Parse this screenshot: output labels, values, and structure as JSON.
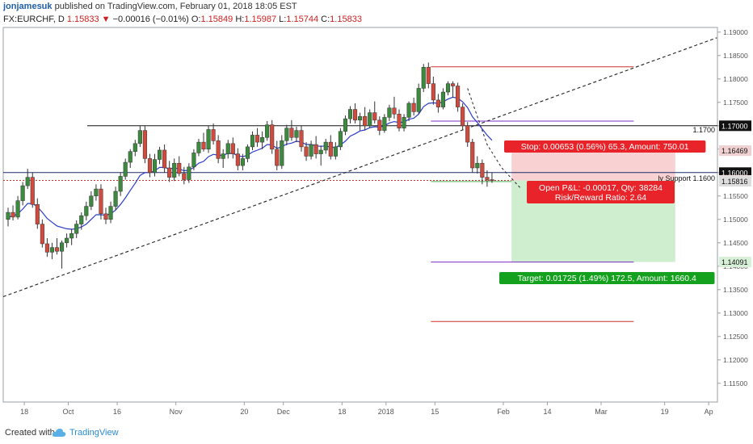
{
  "header": {
    "author": "jonjamesuk",
    "published": "published on TradingView.com, February 01, 2018 18:05 EST",
    "symbol_line_prefix": "FX:EURCHF, D",
    "last": "1.15833",
    "change": "−0.00016 (−0.01%)",
    "open": "1.15849",
    "high": "1.15987",
    "low": "1.15744",
    "close": "1.15833",
    "o_label": "O:",
    "h_label": "H:",
    "l_label": "L:",
    "c_label": "C:"
  },
  "footer": {
    "created_with": "Created with",
    "brand": "TradingView"
  },
  "chart_data": {
    "type": "candlestick",
    "symbol": "FX:EURCHF",
    "timeframe": "D",
    "ylim": [
      1.111,
      1.191
    ],
    "y_ticks": [
      "1.19000",
      "1.18500",
      "1.18000",
      "1.17500",
      "1.17000",
      "1.16500",
      "1.16000",
      "1.15500",
      "1.15000",
      "1.14500",
      "1.14000",
      "1.13500",
      "1.13000",
      "1.12500",
      "1.12000",
      "1.11500"
    ],
    "x_ticks": [
      {
        "label": "18",
        "i": 2
      },
      {
        "label": "Oct",
        "i": 11
      },
      {
        "label": "16",
        "i": 21
      },
      {
        "label": "Nov",
        "i": 33
      },
      {
        "label": "20",
        "i": 47
      },
      {
        "label": "Dec",
        "i": 55
      },
      {
        "label": "18",
        "i": 67
      },
      {
        "label": "2018",
        "i": 76
      },
      {
        "label": "15",
        "i": 86
      },
      {
        "label": "Feb",
        "i": 100
      },
      {
        "label": "14",
        "i": 109
      },
      {
        "label": "Mar",
        "i": 120
      },
      {
        "label": "19",
        "i": 133
      },
      {
        "label": "Ap",
        "i": 142
      }
    ],
    "candles": [
      [
        1.15,
        1.1525,
        1.1485,
        1.1515
      ],
      [
        1.1515,
        1.153,
        1.1498,
        1.1505
      ],
      [
        1.1505,
        1.155,
        1.15,
        1.154
      ],
      [
        1.154,
        1.158,
        1.153,
        1.1572
      ],
      [
        1.1572,
        1.1608,
        1.1565,
        1.159
      ],
      [
        1.159,
        1.16,
        1.1525,
        1.1532
      ],
      [
        1.1532,
        1.1545,
        1.148,
        1.149
      ],
      [
        1.149,
        1.15,
        1.144,
        1.1448
      ],
      [
        1.1448,
        1.146,
        1.142,
        1.143
      ],
      [
        1.143,
        1.145,
        1.1415,
        1.144
      ],
      [
        1.144,
        1.146,
        1.1425,
        1.1432
      ],
      [
        1.1432,
        1.1455,
        1.1395,
        1.145
      ],
      [
        1.145,
        1.147,
        1.144,
        1.146
      ],
      [
        1.146,
        1.148,
        1.1445,
        1.147
      ],
      [
        1.147,
        1.1498,
        1.146,
        1.149
      ],
      [
        1.149,
        1.1515,
        1.1478,
        1.1508
      ],
      [
        1.1508,
        1.1538,
        1.1498,
        1.1528
      ],
      [
        1.1528,
        1.156,
        1.152,
        1.155
      ],
      [
        1.155,
        1.1575,
        1.154,
        1.1565
      ],
      [
        1.1565,
        1.1575,
        1.15,
        1.1512
      ],
      [
        1.1512,
        1.1525,
        1.149,
        1.15
      ],
      [
        1.15,
        1.1538,
        1.1492,
        1.1528
      ],
      [
        1.1528,
        1.157,
        1.152,
        1.156
      ],
      [
        1.156,
        1.16,
        1.155,
        1.1592
      ],
      [
        1.1592,
        1.163,
        1.1585,
        1.1622
      ],
      [
        1.1622,
        1.165,
        1.161,
        1.1645
      ],
      [
        1.1645,
        1.167,
        1.1635,
        1.1662
      ],
      [
        1.1662,
        1.17,
        1.1655,
        1.169
      ],
      [
        1.169,
        1.17,
        1.162,
        1.163
      ],
      [
        1.163,
        1.164,
        1.159,
        1.16
      ],
      [
        1.16,
        1.164,
        1.1592,
        1.1628
      ],
      [
        1.1628,
        1.1655,
        1.1618,
        1.1648
      ],
      [
        1.1648,
        1.166,
        1.16,
        1.161
      ],
      [
        1.161,
        1.1625,
        1.158,
        1.159
      ],
      [
        1.159,
        1.163,
        1.1582,
        1.162
      ],
      [
        1.162,
        1.1635,
        1.1592,
        1.1598
      ],
      [
        1.1598,
        1.1612,
        1.1575,
        1.1585
      ],
      [
        1.1585,
        1.162,
        1.1578,
        1.1612
      ],
      [
        1.1612,
        1.165,
        1.1605,
        1.1642
      ],
      [
        1.1642,
        1.1672,
        1.1635,
        1.1665
      ],
      [
        1.1665,
        1.1685,
        1.1645,
        1.165
      ],
      [
        1.165,
        1.17,
        1.1642,
        1.1692
      ],
      [
        1.1692,
        1.1705,
        1.166,
        1.1668
      ],
      [
        1.1668,
        1.168,
        1.162,
        1.163
      ],
      [
        1.163,
        1.165,
        1.161,
        1.164
      ],
      [
        1.164,
        1.167,
        1.163,
        1.1662
      ],
      [
        1.1662,
        1.1675,
        1.163,
        1.164
      ],
      [
        1.164,
        1.1652,
        1.1605,
        1.1615
      ],
      [
        1.1615,
        1.164,
        1.1605,
        1.163
      ],
      [
        1.163,
        1.166,
        1.1622,
        1.1655
      ],
      [
        1.1655,
        1.1688,
        1.1648,
        1.168
      ],
      [
        1.168,
        1.1695,
        1.1655,
        1.1665
      ],
      [
        1.1665,
        1.1688,
        1.165,
        1.1675
      ],
      [
        1.1675,
        1.171,
        1.1668,
        1.1702
      ],
      [
        1.1702,
        1.1712,
        1.164,
        1.165
      ],
      [
        1.165,
        1.1668,
        1.1605,
        1.1615
      ],
      [
        1.1615,
        1.168,
        1.1608,
        1.1668
      ],
      [
        1.1668,
        1.1702,
        1.1658,
        1.1695
      ],
      [
        1.1695,
        1.1712,
        1.1668,
        1.1675
      ],
      [
        1.1675,
        1.1698,
        1.1665,
        1.169
      ],
      [
        1.169,
        1.17,
        1.1645,
        1.1655
      ],
      [
        1.1655,
        1.1665,
        1.1625,
        1.1635
      ],
      [
        1.1635,
        1.1668,
        1.1628,
        1.166
      ],
      [
        1.166,
        1.1678,
        1.163,
        1.164
      ],
      [
        1.164,
        1.1658,
        1.1615,
        1.1648
      ],
      [
        1.1648,
        1.1672,
        1.164,
        1.1665
      ],
      [
        1.1665,
        1.168,
        1.1628,
        1.1635
      ],
      [
        1.1635,
        1.1665,
        1.1628,
        1.1655
      ],
      [
        1.1655,
        1.1695,
        1.1648,
        1.1688
      ],
      [
        1.1688,
        1.1722,
        1.168,
        1.1715
      ],
      [
        1.1715,
        1.1742,
        1.1705,
        1.1735
      ],
      [
        1.1735,
        1.1748,
        1.1705,
        1.1712
      ],
      [
        1.1712,
        1.1728,
        1.169,
        1.172
      ],
      [
        1.172,
        1.174,
        1.169,
        1.17
      ],
      [
        1.17,
        1.1735,
        1.1695,
        1.1728
      ],
      [
        1.1728,
        1.1752,
        1.1705,
        1.1712
      ],
      [
        1.1712,
        1.172,
        1.168,
        1.169
      ],
      [
        1.169,
        1.1725,
        1.1685,
        1.1718
      ],
      [
        1.1718,
        1.1745,
        1.171,
        1.1738
      ],
      [
        1.1738,
        1.1762,
        1.1715,
        1.1725
      ],
      [
        1.1725,
        1.1735,
        1.1688,
        1.1695
      ],
      [
        1.1695,
        1.1725,
        1.1688,
        1.1718
      ],
      [
        1.1718,
        1.1752,
        1.171,
        1.1748
      ],
      [
        1.1748,
        1.176,
        1.1722,
        1.173
      ],
      [
        1.173,
        1.179,
        1.1725,
        1.178
      ],
      [
        1.178,
        1.1832,
        1.1772,
        1.1825
      ],
      [
        1.1825,
        1.1835,
        1.178,
        1.179
      ],
      [
        1.179,
        1.1805,
        1.1745,
        1.1755
      ],
      [
        1.1755,
        1.1768,
        1.1728,
        1.174
      ],
      [
        1.174,
        1.178,
        1.1735,
        1.1772
      ],
      [
        1.1772,
        1.1795,
        1.1765,
        1.179
      ],
      [
        1.179,
        1.1795,
        1.176,
        1.1785
      ],
      [
        1.1785,
        1.1792,
        1.173,
        1.174
      ],
      [
        1.174,
        1.1748,
        1.169,
        1.17
      ],
      [
        1.17,
        1.1708,
        1.1655,
        1.1665
      ],
      [
        1.1665,
        1.1672,
        1.16,
        1.161
      ],
      [
        1.161,
        1.1635,
        1.1598,
        1.162
      ],
      [
        1.162,
        1.1628,
        1.1575,
        1.159
      ],
      [
        1.159,
        1.1605,
        1.157,
        1.1585
      ],
      [
        1.1585,
        1.16,
        1.1578,
        1.1583
      ]
    ],
    "ema": [
      1.1505,
      1.1507,
      1.1512,
      1.1522,
      1.1534,
      1.1534,
      1.1527,
      1.1515,
      1.1502,
      1.1494,
      1.1486,
      1.1483,
      1.148,
      1.1479,
      1.148,
      1.1484,
      1.149,
      1.15,
      1.151,
      1.151,
      1.1509,
      1.1512,
      1.152,
      1.1532,
      1.1546,
      1.1562,
      1.1577,
      1.1594,
      1.16,
      1.16,
      1.1604,
      1.1611,
      1.1611,
      1.1608,
      1.161,
      1.1608,
      1.1604,
      1.1605,
      1.1611,
      1.162,
      1.1624,
      1.1634,
      1.1639,
      1.1637,
      1.1637,
      1.1641,
      1.1641,
      1.1636,
      1.1634,
      1.1637,
      1.1644,
      1.1648,
      1.1652,
      1.166,
      1.1659,
      1.1652,
      1.1655,
      1.1661,
      1.1663,
      1.1667,
      1.1665,
      1.166,
      1.166,
      1.1657,
      1.1656,
      1.1657,
      1.1654,
      1.1654,
      1.1659,
      1.1667,
      1.1678,
      1.1683,
      1.1689,
      1.1691,
      1.1696,
      1.1698,
      1.1697,
      1.17,
      1.1706,
      1.1709,
      1.1707,
      1.1708,
      1.1714,
      1.1716,
      1.1725,
      1.1741,
      1.1748,
      1.1749,
      1.1748,
      1.1751,
      1.1757,
      1.1761,
      1.1759,
      1.1751,
      1.1739,
      1.1719,
      1.1707,
      1.1693,
      1.168,
      1.1669
    ],
    "levels": [
      {
        "price": 1.17,
        "label": "1.1700",
        "kind": "resistance"
      },
      {
        "price": 1.16,
        "label": "ly Support 1.1600",
        "kind": "support"
      },
      {
        "price": 1.1826,
        "label": "",
        "kind": "red-upper"
      },
      {
        "price": 1.1282,
        "label": "",
        "kind": "red-lower"
      },
      {
        "price": 1.171,
        "label": "",
        "kind": "purple-upper"
      },
      {
        "price": 1.1409,
        "label": "",
        "kind": "purple-lower"
      },
      {
        "price": 1.1581,
        "label": "",
        "kind": "green-mid"
      }
    ],
    "trendline": {
      "from": {
        "i": -1,
        "price": 1.1335
      },
      "to": {
        "i": 145,
        "price": 1.1888
      }
    },
    "position": {
      "entry": 1.15833,
      "stop": 1.16469,
      "target": 1.14091,
      "stop_label": "Stop: 0.00653 (0.56%) 65.3, Amount: 750.01",
      "pnl_label": "Open P&L: -0.00017, Qty: 38284",
      "rr_label": "Risk/Reward Ratio: 2.64",
      "target_label": "Target: 0.01725 (1.49%) 172.5, Amount: 1660.4"
    },
    "price_badges": [
      {
        "price": 1.17,
        "text": "1.17000",
        "color": "#111111",
        "text_color": "#ffffff"
      },
      {
        "price": 1.16469,
        "text": "1.16469",
        "color": "#f0d0d0",
        "text_color": "#111111"
      },
      {
        "price": 1.16,
        "text": "1.16000",
        "color": "#111111",
        "text_color": "#ffffff"
      },
      {
        "price": 1.15833,
        "text": "1.15833",
        "color": "#f6dede",
        "text_color": "#111111"
      },
      {
        "price": 1.15816,
        "text": "1.15816",
        "color": "#dddddd",
        "text_color": "#111111"
      },
      {
        "price": 1.14091,
        "text": "1.14091",
        "color": "#d8f0d8",
        "text_color": "#111111"
      }
    ],
    "colors": {
      "up": "#3b8a3e",
      "down": "#d04a3e",
      "ema": "#2b3cc8",
      "stop_zone": "#f8d2d2",
      "target_zone": "#cfeecf"
    }
  }
}
